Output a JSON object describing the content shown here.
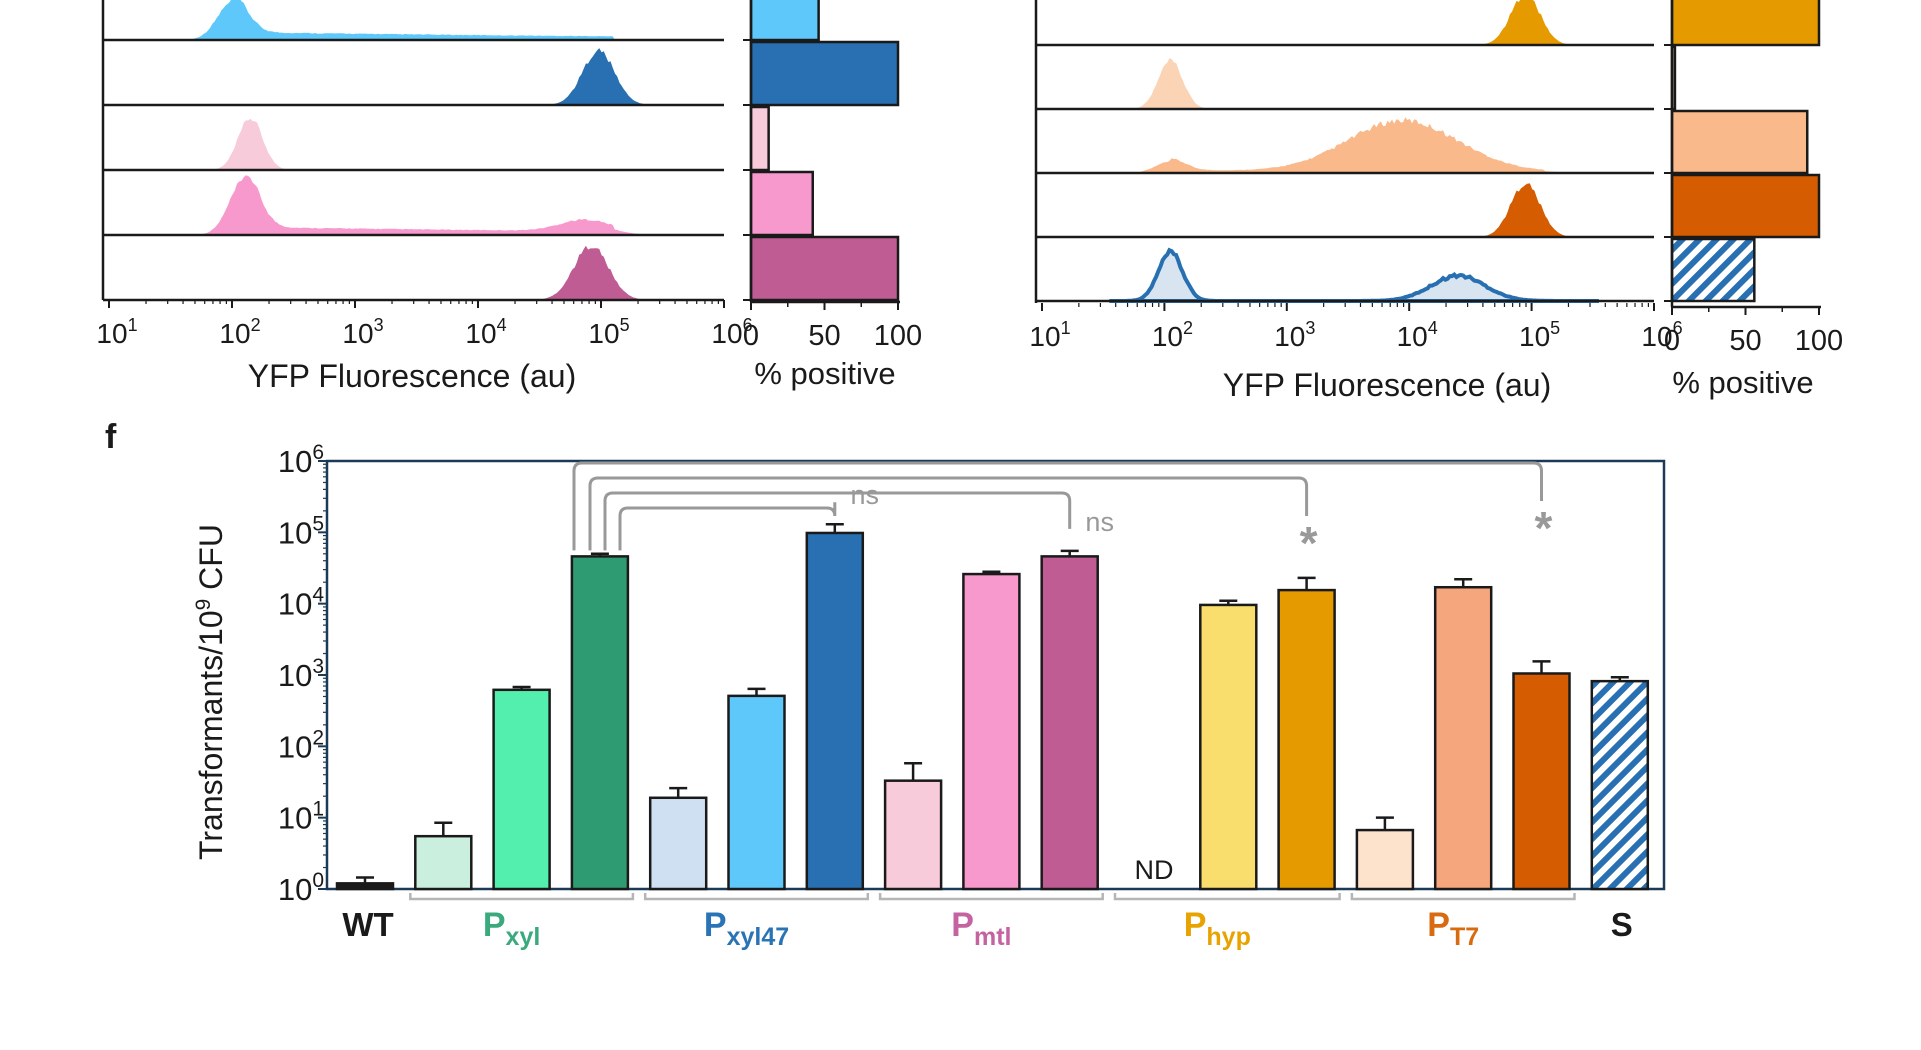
{
  "panel_label": "f",
  "colors": {
    "wt": "#1a1a1a",
    "xyl": [
      "#cbefdf",
      "#52efae",
      "#2f9b72"
    ],
    "xyl47": [
      "#cfe0f2",
      "#5fc8fa",
      "#2870b1"
    ],
    "mtl": [
      "#f7cbd9",
      "#f799cc",
      "#bf5c93"
    ],
    "hyp": [
      "#f9dd6d",
      "#e59a00"
    ],
    "t7": [
      "#fde3cc",
      "#f5a67d",
      "#d55c00"
    ],
    "s": "#2870b1",
    "xyl_label": "#3aaa7e",
    "xyl47_label": "#2a74b6",
    "mtl_label": "#c463a0",
    "hyp_label": "#e8a300",
    "t7_label": "#d86a10",
    "sig": "#999999"
  },
  "chart_data": [
    {
      "type": "histogram",
      "xlabel": "YFP Fluorescence (au)",
      "x_scale": "log10",
      "xlim": [
        10,
        1000000
      ],
      "x_tick_labels": [
        "10^1",
        "10^2",
        "10^3",
        "10^4",
        "10^5",
        "10^6"
      ],
      "tracks": [
        {
          "color": "#5fc8fa",
          "peaks": [
            {
              "center_log10": 2.0,
              "height": 0.65,
              "width": 0.12
            }
          ],
          "tail": 0.14,
          "partial": true
        },
        {
          "color": "#2870b1",
          "peaks": [
            {
              "center_log10": 4.98,
              "height": 0.95,
              "width": 0.13
            }
          ]
        },
        {
          "color": "#f7cbd9",
          "peaks": [
            {
              "center_log10": 2.15,
              "height": 0.9,
              "width": 0.1
            }
          ]
        },
        {
          "color": "#f799cc",
          "peaks": [
            {
              "center_log10": 2.1,
              "height": 0.95,
              "width": 0.12
            },
            {
              "center_log10": 4.87,
              "height": 0.2,
              "width": 0.2
            }
          ],
          "tail": 0.14
        },
        {
          "color": "#bf5c93",
          "peaks": [
            {
              "center_log10": 4.92,
              "height": 0.95,
              "width": 0.14
            }
          ]
        }
      ]
    },
    {
      "type": "bar",
      "orientation": "horizontal",
      "xlabel": "% positive",
      "xlim": [
        0,
        100
      ],
      "x_ticks": [
        0,
        50,
        100
      ],
      "values": [
        46,
        100,
        12,
        42,
        100
      ],
      "colors": [
        "#5fc8fa",
        "#2870b1",
        "#f7cbd9",
        "#f799cc",
        "#bf5c93"
      ]
    },
    {
      "type": "histogram",
      "xlabel": "YFP Fluorescence (au)",
      "x_scale": "log10",
      "xlim": [
        10,
        1000000
      ],
      "x_tick_labels": [
        "10^1",
        "10^2",
        "10^3",
        "10^4",
        "10^5",
        "10^6"
      ],
      "tracks": [
        {
          "color": "#e59a00",
          "peaks": [
            {
              "center_log10": 4.95,
              "height": 0.9,
              "width": 0.12
            }
          ],
          "partial": true
        },
        {
          "color": "#fbd3b5",
          "peaks": [
            {
              "center_log10": 2.05,
              "height": 0.85,
              "width": 0.1
            }
          ]
        },
        {
          "color": "#f9b98a",
          "peaks": [
            {
              "center_log10": 2.05,
              "height": 0.2,
              "width": 0.12
            },
            {
              "center_log10": 3.95,
              "height": 0.9,
              "width": 0.45
            }
          ],
          "tail": 0.05
        },
        {
          "color": "#d55c00",
          "peaks": [
            {
              "center_log10": 4.95,
              "height": 0.95,
              "width": 0.12
            }
          ]
        },
        {
          "color": "#2870b1",
          "peaks": [
            {
              "center_log10": 2.05,
              "height": 0.85,
              "width": 0.1
            },
            {
              "center_log10": 4.4,
              "height": 0.45,
              "width": 0.22
            }
          ],
          "outline": true
        }
      ]
    },
    {
      "type": "bar",
      "orientation": "horizontal",
      "xlabel": "% positive",
      "xlim": [
        0,
        100
      ],
      "x_ticks": [
        0,
        50,
        100
      ],
      "values": [
        100,
        2,
        92,
        100,
        56
      ],
      "colors": [
        "#e59a00",
        "#fbd3b5",
        "#f9b98a",
        "#d55c00",
        "#2870b1"
      ],
      "hatched_index": 4
    },
    {
      "type": "bar",
      "y_scale": "log10",
      "ylim": [
        1,
        1000000
      ],
      "ylabel": "Transformants/10^9 CFU",
      "y_tick_labels": [
        "10^0",
        "10^1",
        "10^2",
        "10^3",
        "10^4",
        "10^5",
        "10^6"
      ],
      "bars": [
        {
          "value": 1.2,
          "err": 1.45,
          "color": "#1a1a1a"
        },
        {
          "value": 5.5,
          "err": 8.5,
          "color": "#cbefdf"
        },
        {
          "value": 620,
          "err": 680,
          "color": "#52efae"
        },
        {
          "value": 46000,
          "err": 50000,
          "color": "#2f9b72"
        },
        {
          "value": 19,
          "err": 26,
          "color": "#cfe0f2"
        },
        {
          "value": 510,
          "err": 640,
          "color": "#5fc8fa"
        },
        {
          "value": 98000,
          "err": 130000,
          "color": "#2870b1"
        },
        {
          "value": 33,
          "err": 58,
          "color": "#f7cbd9"
        },
        {
          "value": 26000,
          "err": 28000,
          "color": "#f799cc"
        },
        {
          "value": 46000,
          "err": 55000,
          "color": "#bf5c93"
        },
        {
          "value": null,
          "color": null,
          "note": "ND"
        },
        {
          "value": 9600,
          "err": 11000,
          "color": "#f9dd6d"
        },
        {
          "value": 15500,
          "err": 23000,
          "color": "#e59a00"
        },
        {
          "value": 6.7,
          "err": 10,
          "color": "#fde3cc"
        },
        {
          "value": 17000,
          "err": 22000,
          "color": "#f5a67d"
        },
        {
          "value": 1050,
          "err": 1550,
          "color": "#d55c00"
        },
        {
          "value": 820,
          "err": 930,
          "color": "#2870b1",
          "hatched": true
        }
      ],
      "comparisons": [
        {
          "from": 3,
          "to": 6,
          "label": "ns"
        },
        {
          "from": 3,
          "to": 9,
          "label": "ns"
        },
        {
          "from": 3,
          "to": 12,
          "label": "*"
        },
        {
          "from": 3,
          "to": 15,
          "label": "*"
        }
      ],
      "groups": [
        {
          "base": "WT",
          "sub": "",
          "bars": [
            0
          ]
        },
        {
          "base": "P",
          "sub": "xyl",
          "bars": [
            1,
            2,
            3
          ]
        },
        {
          "base": "P",
          "sub": "xyl47",
          "bars": [
            4,
            5,
            6
          ]
        },
        {
          "base": "P",
          "sub": "mtl",
          "bars": [
            7,
            8,
            9
          ]
        },
        {
          "base": "P",
          "sub": "hyp",
          "bars": [
            10,
            11,
            12
          ]
        },
        {
          "base": "P",
          "sub": "T7",
          "bars": [
            13,
            14,
            15
          ]
        },
        {
          "base": "S",
          "sub": "",
          "bars": [
            16
          ]
        }
      ]
    }
  ],
  "labels": {
    "hist_xlabel_left": "YFP Fluorescence (au)",
    "pos_xlabel_left": "% positive",
    "hist_xlabel_right": "YFP Fluorescence (au)",
    "pos_xlabel_right": "% positive",
    "tick_10": "10",
    "pos_ticks": [
      "0",
      "50",
      "100"
    ],
    "ylabel_main": "Transformants/10",
    "ylabel_exp": "9",
    "ylabel_tail": " CFU",
    "nd": "ND",
    "wt": "WT",
    "s": "S",
    "p": "P",
    "sub_xyl": "xyl",
    "sub_xyl47": "xyl47",
    "sub_mtl": "mtl",
    "sub_hyp": "hyp",
    "sub_t7": "T7"
  }
}
